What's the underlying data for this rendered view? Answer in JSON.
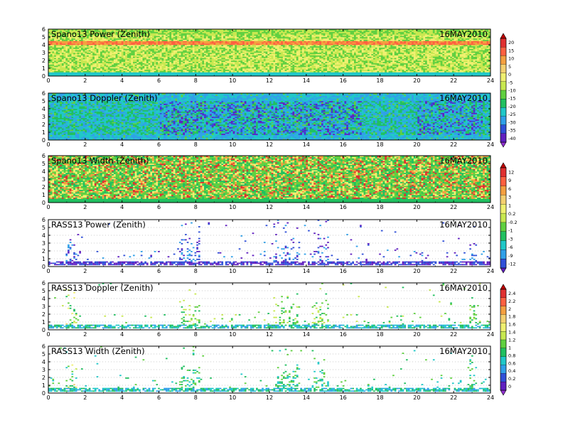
{
  "date_label": "16MAY2010",
  "x_ticks": [
    "0",
    "2",
    "4",
    "6",
    "8",
    "10",
    "12",
    "14",
    "16",
    "18",
    "20",
    "22",
    "24"
  ],
  "y_ticks": [
    "0",
    "1",
    "2",
    "3",
    "4",
    "5",
    "6"
  ],
  "colorbars": [
    {
      "id": "cb1",
      "labels": [
        "20",
        "15",
        "10",
        "5",
        "0",
        "-5",
        "-10",
        "-15",
        "-20",
        "-25",
        "-30",
        "-35",
        "-40"
      ],
      "colors": [
        "#c00000",
        "#e03030",
        "#ff6040",
        "#f4a040",
        "#f4d070",
        "#f0f070",
        "#c8e850",
        "#60d040",
        "#20c060",
        "#20c8c8",
        "#30a0e8",
        "#3050d8",
        "#6020c0",
        "#9030d0"
      ]
    },
    {
      "id": "cb2",
      "labels": [
        "12",
        "9",
        "6",
        "3",
        "1",
        "0.2",
        "-0.2",
        "-1",
        "-3",
        "-6",
        "-9",
        "-12"
      ],
      "colors": [
        "#c00000",
        "#e03030",
        "#ff6040",
        "#f4a040",
        "#f4d070",
        "#f0f070",
        "#c8e850",
        "#60d040",
        "#20c060",
        "#20c8c8",
        "#30a0e8",
        "#3050d8",
        "#6020c0"
      ]
    },
    {
      "id": "cb3",
      "labels": [
        "2.4",
        "2.2",
        "2",
        "1.8",
        "1.6",
        "1.4",
        "1.2",
        "1",
        "0.8",
        "0.6",
        "0.4",
        "0.2",
        "0"
      ],
      "colors": [
        "#c00000",
        "#e03030",
        "#ff6040",
        "#f4a040",
        "#f4d070",
        "#f0f070",
        "#c8e850",
        "#60d040",
        "#20c060",
        "#20c8c8",
        "#30a0e8",
        "#3050d8",
        "#6020c0",
        "#9030d0"
      ]
    }
  ],
  "chart_data": [
    {
      "type": "heatmap",
      "title": "Spano13 Power (Zenith)",
      "date": "16MAY2010",
      "x_range": [
        0,
        24
      ],
      "y_range": [
        0,
        6
      ],
      "colorbar": "cb1"
    },
    {
      "type": "heatmap",
      "title": "Spano13 Doppler (Zenith)",
      "date": "16MAY2010",
      "x_range": [
        0,
        24
      ],
      "y_range": [
        0,
        6
      ],
      "colorbar": "cb1"
    },
    {
      "type": "heatmap",
      "title": "Spano13 Width (Zenith)",
      "date": "16MAY2010",
      "x_range": [
        0,
        24
      ],
      "y_range": [
        0,
        6
      ],
      "colorbar": "cb2"
    },
    {
      "type": "heatmap",
      "title": "RASS13 Power (Zenith)",
      "date": "16MAY2010",
      "x_range": [
        0,
        24
      ],
      "y_range": [
        0,
        6
      ],
      "colorbar": "cb2"
    },
    {
      "type": "heatmap",
      "title": "RASS13 Doppler (Zenith)",
      "date": "16MAY2010",
      "x_range": [
        0,
        24
      ],
      "y_range": [
        0,
        6
      ],
      "colorbar": "cb3"
    },
    {
      "type": "heatmap",
      "title": "RASS13 Width (Zenith)",
      "date": "16MAY2010",
      "x_range": [
        0,
        24
      ],
      "y_range": [
        0,
        6
      ],
      "colorbar": "cb3"
    }
  ]
}
